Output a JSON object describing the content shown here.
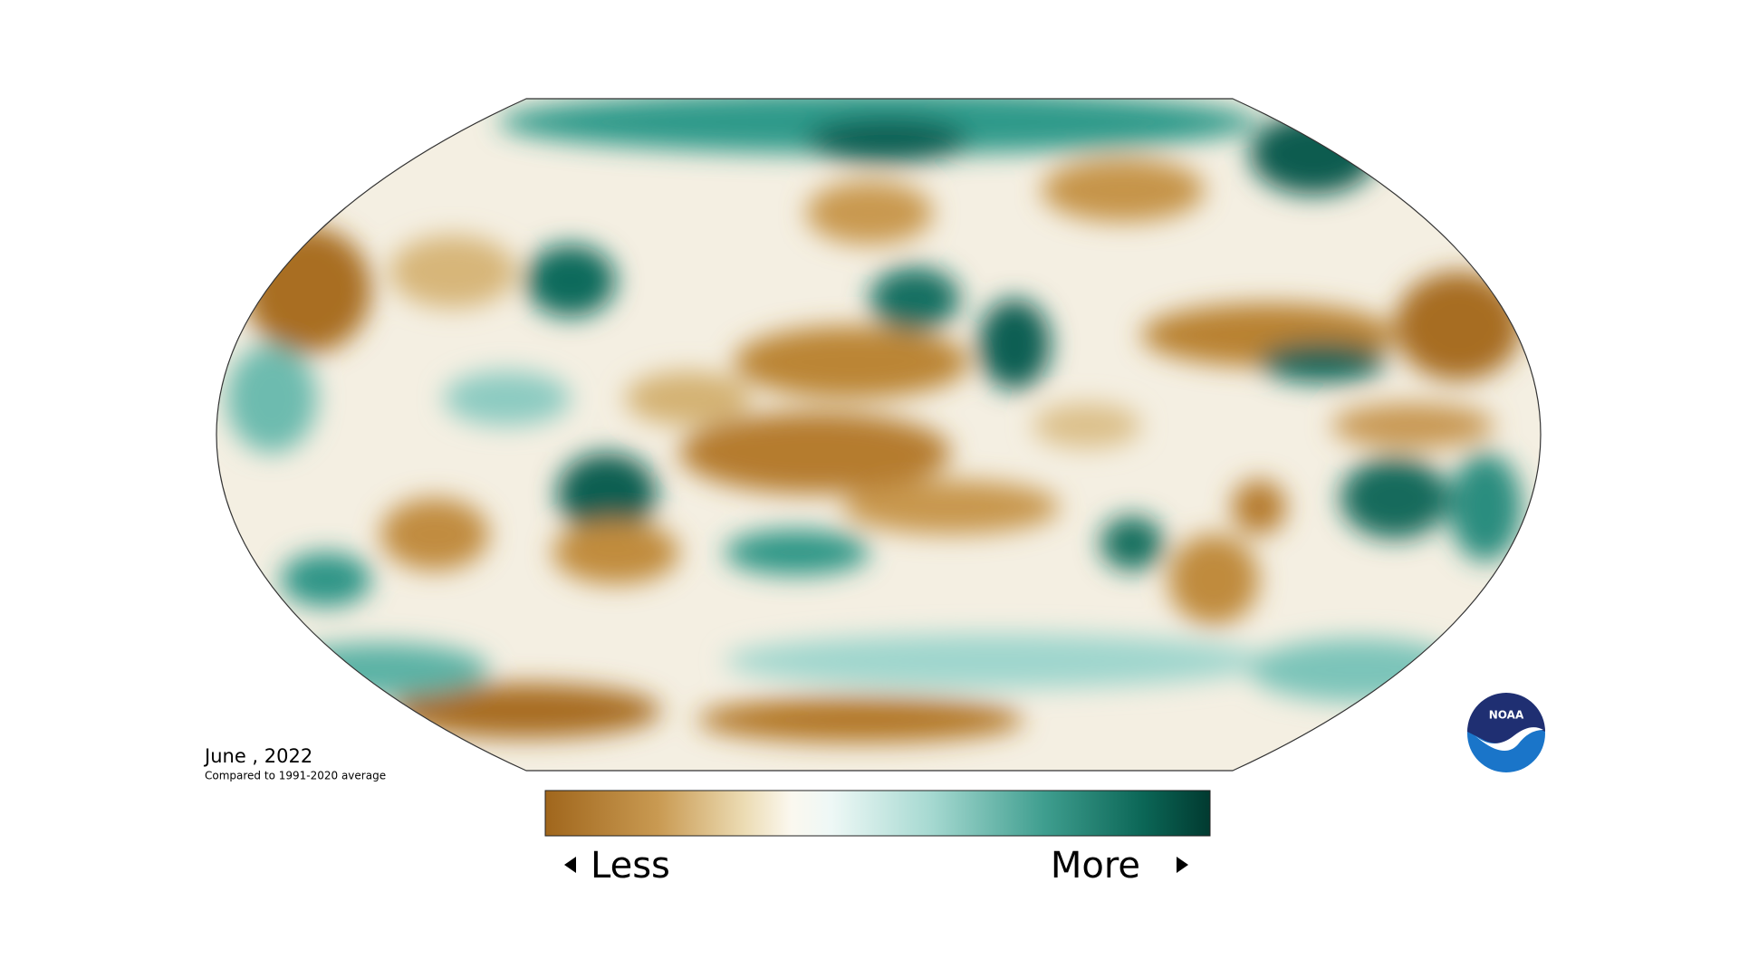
{
  "map": {
    "date_label": "June , 2022",
    "subtitle": "Compared to 1991-2020 average"
  },
  "legend": {
    "low_label": "Less",
    "high_label": "More"
  },
  "logo": {
    "text": "NOAA"
  }
}
